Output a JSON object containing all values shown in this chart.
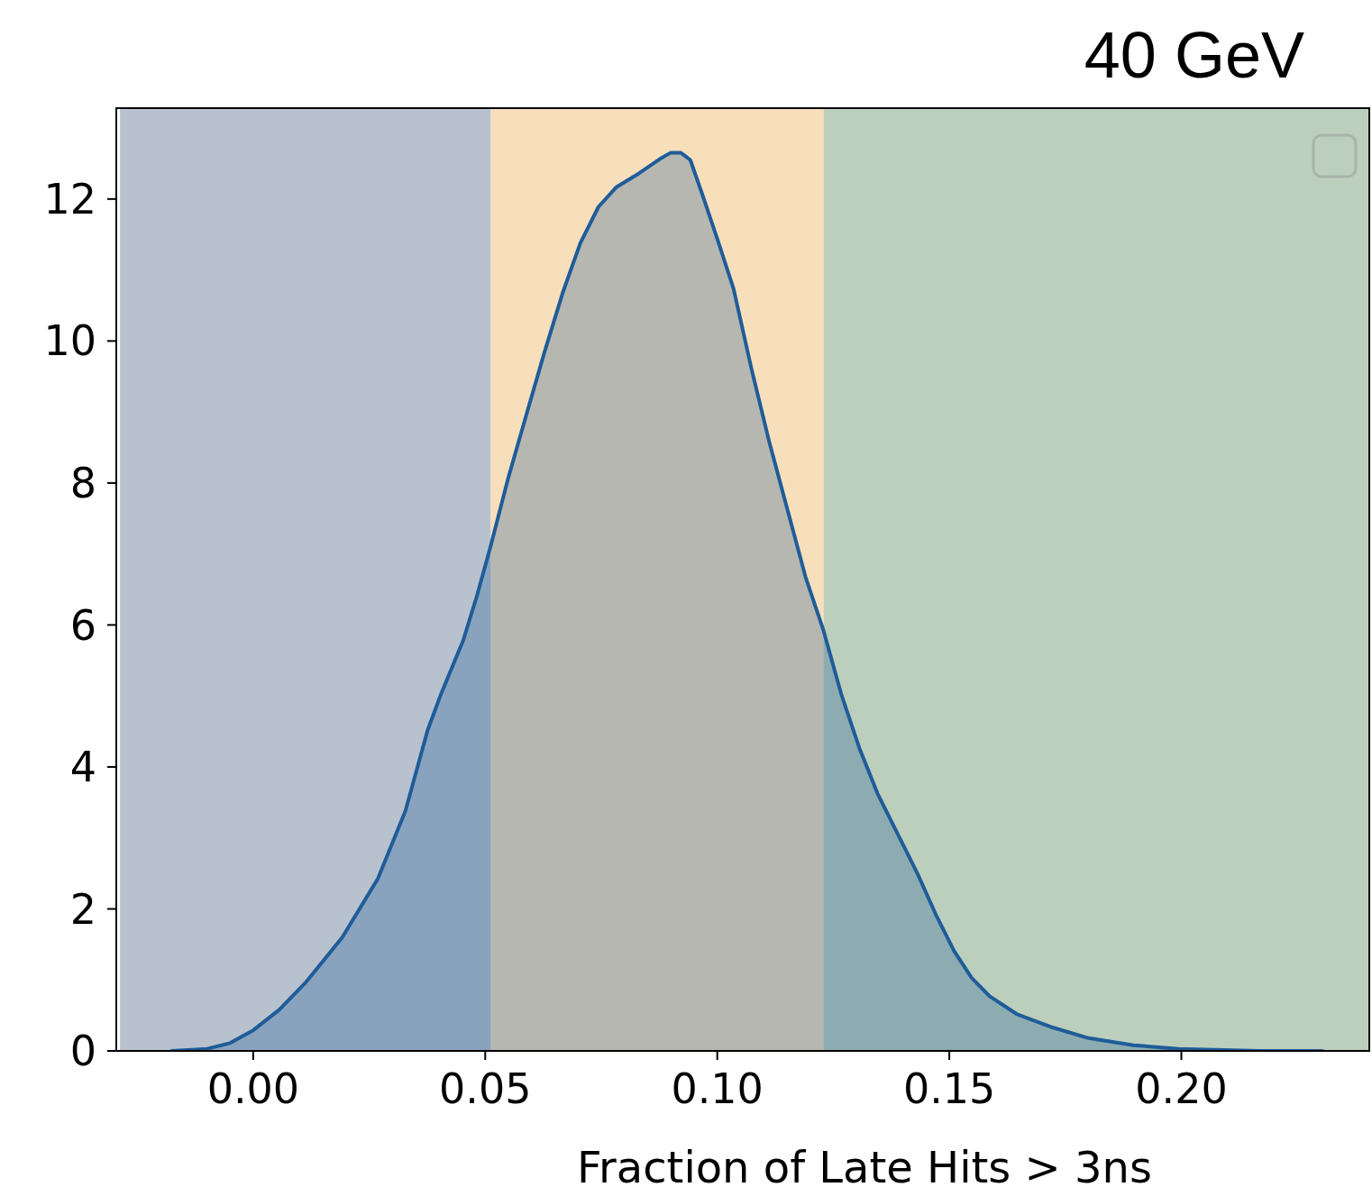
{
  "chart_data": {
    "type": "area",
    "title": "40 GeV",
    "xlabel": "Fraction of Late Hits > 3ns",
    "xlim": [
      -0.0295,
      0.2405
    ],
    "xticks": [
      {
        "value": 0,
        "label": "0.00"
      },
      {
        "value": 0.05,
        "label": "0.05"
      },
      {
        "value": 0.1,
        "label": "0.10"
      },
      {
        "value": 0.15,
        "label": "0.15"
      },
      {
        "value": 0.2,
        "label": "0.20"
      }
    ],
    "ylim": [
      0,
      13.28
    ],
    "yticks": [
      0,
      2,
      4,
      6,
      8,
      10,
      12
    ],
    "grid": false,
    "bands": [
      {
        "axis": "x",
        "from": -0.0287,
        "to": 0.0512,
        "color": "#b8c2ce"
      },
      {
        "axis": "x",
        "from": 0.0512,
        "to": 0.1229,
        "color": "#f8dfbb"
      },
      {
        "axis": "x",
        "from": 0.1229,
        "to": 0.2405,
        "color": "#bccfbc"
      }
    ],
    "series": [
      {
        "color": "#1f5c99",
        "x": [
          -0.0176,
          -0.0099,
          -0.005,
          0,
          0.0056,
          0.0114,
          0.0192,
          0.0269,
          0.0328,
          0.0376,
          0.0405,
          0.0453,
          0.0483,
          0.0512,
          0.055,
          0.0589,
          0.0628,
          0.0667,
          0.0705,
          0.0744,
          0.0783,
          0.0831,
          0.088,
          0.0899,
          0.0922,
          0.0942,
          0.0967,
          0.1,
          0.1035,
          0.1074,
          0.1112,
          0.1151,
          0.119,
          0.1229,
          0.1267,
          0.1306,
          0.1345,
          0.1393,
          0.1432,
          0.1471,
          0.151,
          0.1548,
          0.1587,
          0.1645,
          0.1723,
          0.18,
          0.1897,
          0.1994,
          0.2169,
          0.2304
        ],
        "values": [
          0,
          0.03,
          0.11,
          0.29,
          0.58,
          0.97,
          1.6,
          2.43,
          3.38,
          4.52,
          5.03,
          5.79,
          6.43,
          7.12,
          8.08,
          8.97,
          9.85,
          10.68,
          11.38,
          11.89,
          12.17,
          12.36,
          12.58,
          12.65,
          12.65,
          12.55,
          12.08,
          11.44,
          10.74,
          9.6,
          8.58,
          7.63,
          6.68,
          5.92,
          5.03,
          4.27,
          3.63,
          3.0,
          2.49,
          1.92,
          1.41,
          1.03,
          0.77,
          0.52,
          0.33,
          0.18,
          0.08,
          0.03,
          0,
          0
        ]
      }
    ]
  }
}
